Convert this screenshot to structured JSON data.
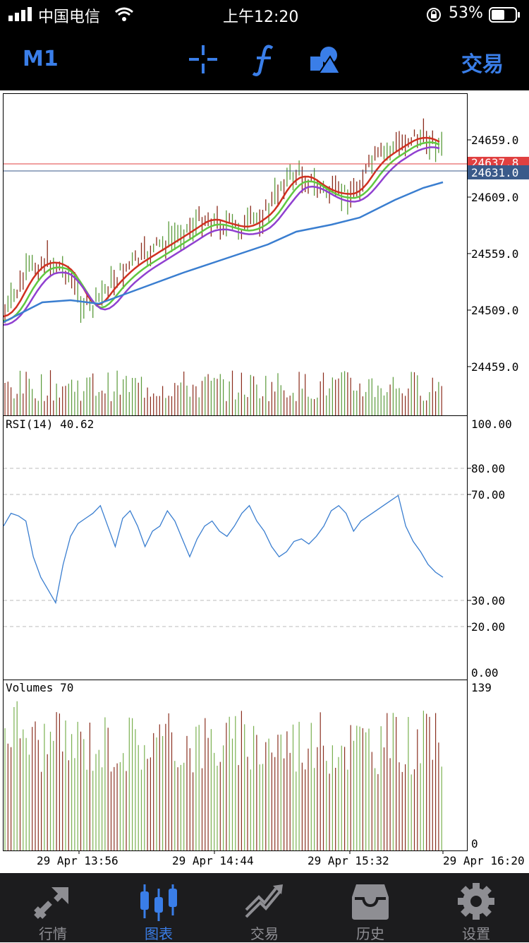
{
  "status_bar": {
    "carrier": "中国电信",
    "time": "上午12:20",
    "battery": "53%",
    "icons": [
      "signal-icon",
      "wifi-icon",
      "orientation-lock-icon",
      "battery-icon"
    ]
  },
  "toolbar": {
    "timeframe": "M1",
    "trade_label": "交易",
    "icons": [
      "crosshair-icon",
      "indicators-icon",
      "objects-icon"
    ],
    "accent_color": "#3a7ee8"
  },
  "main_chart": {
    "price_labels": [
      "24659.0",
      "24609.0",
      "24559.0",
      "24509.0",
      "24459.0"
    ],
    "ask_label": "24637.8",
    "bid_label": "24631.0",
    "colors": {
      "ma_fast": "#d03020",
      "ma_mid": "#60c840",
      "ma_slow": "#9040d0",
      "ma_long": "#3a7ed0",
      "bull": "#5a9a3a",
      "bear": "#8a2a1a",
      "ask": "#e04040",
      "bid": "#3a5a8a"
    }
  },
  "rsi_panel": {
    "title": "RSI(14) 40.62",
    "levels": [
      "100.00",
      "80.00",
      "70.00",
      "30.00",
      "20.00",
      "0.00"
    ]
  },
  "volume_panel": {
    "title": "Volumes 70",
    "max_label": "139",
    "min_label": "0"
  },
  "time_axis": [
    "29 Apr 13:56",
    "29 Apr 14:44",
    "29 Apr 15:32",
    "29 Apr 16:20"
  ],
  "chart_data": {
    "type": "line",
    "series": [
      {
        "name": "RSI(14) 40.62",
        "values": [
          60,
          65,
          64,
          62,
          48,
          40,
          35,
          30,
          45,
          56,
          61,
          63,
          65,
          68,
          60,
          52,
          63,
          66,
          60,
          52,
          58,
          60,
          66,
          62,
          55,
          48,
          55,
          60,
          62,
          58,
          56,
          60,
          65,
          68,
          62,
          58,
          52,
          48,
          50,
          54,
          55,
          53,
          56,
          60,
          66,
          68,
          65,
          58,
          62,
          64,
          66,
          68,
          70,
          72,
          60,
          54,
          50,
          45,
          42,
          40
        ]
      }
    ],
    "rsi_ylim": [
      0,
      100
    ],
    "volume_ylim": [
      0,
      139
    ],
    "last_volume": 70
  },
  "tabs": [
    {
      "label": "行情",
      "icon": "quotes-icon"
    },
    {
      "label": "图表",
      "icon": "chart-candles-icon"
    },
    {
      "label": "交易",
      "icon": "trade-icon"
    },
    {
      "label": "历史",
      "icon": "history-icon"
    },
    {
      "label": "设置",
      "icon": "settings-gear-icon"
    }
  ]
}
